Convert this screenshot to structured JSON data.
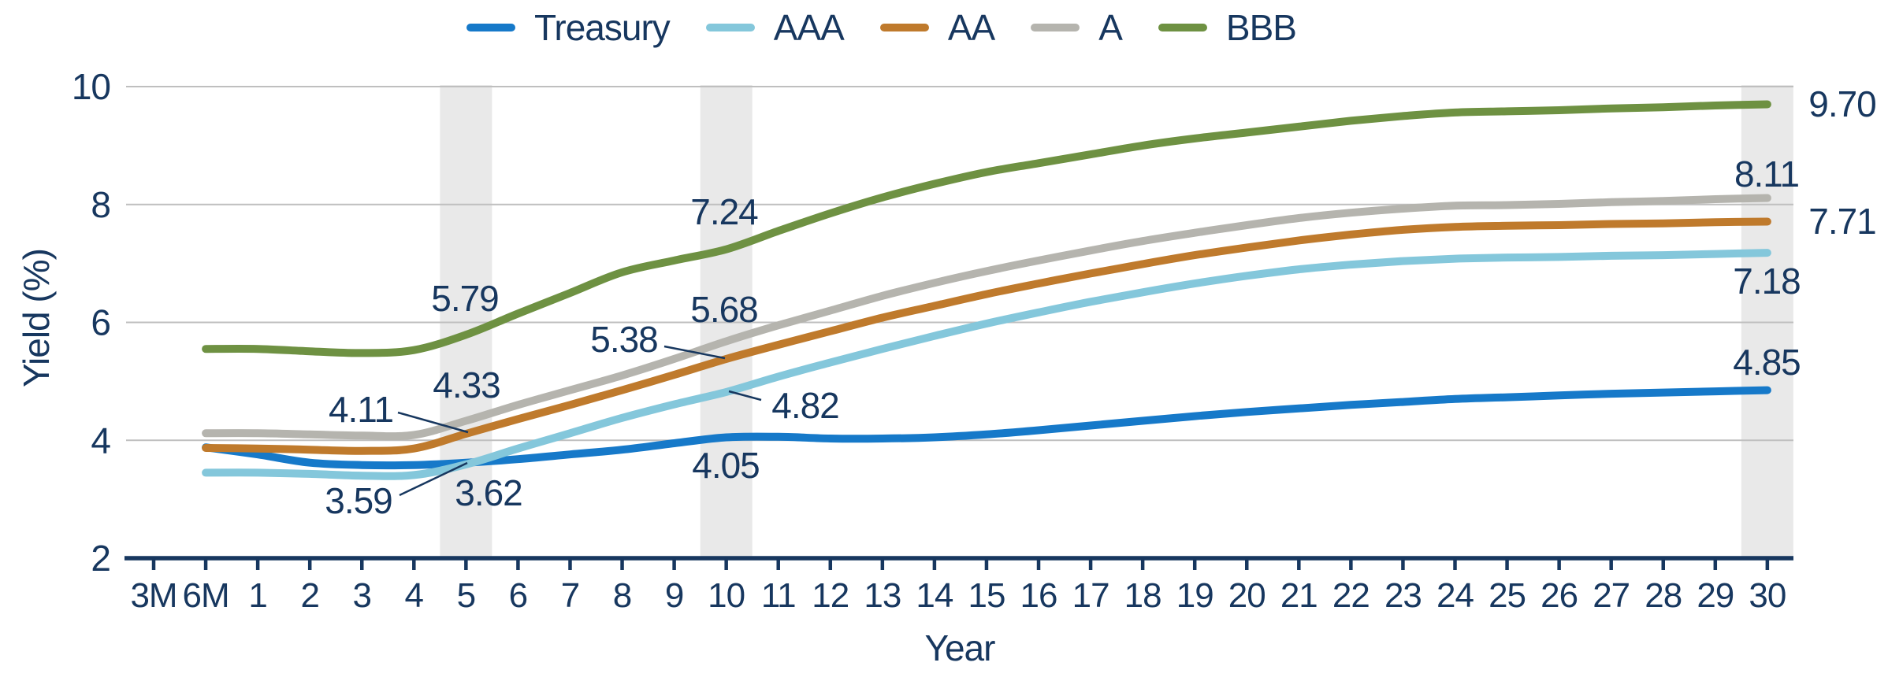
{
  "chart_data": {
    "type": "line",
    "xlabel": "Year",
    "ylabel": "Yield (%)",
    "x_categories": [
      "3M",
      "6M",
      "1",
      "2",
      "3",
      "4",
      "5",
      "6",
      "7",
      "8",
      "9",
      "10",
      "11",
      "12",
      "13",
      "14",
      "15",
      "16",
      "17",
      "18",
      "19",
      "20",
      "21",
      "22",
      "23",
      "24",
      "25",
      "26",
      "27",
      "28",
      "29",
      "30"
    ],
    "ylim": [
      2,
      10
    ],
    "yticks": [
      2,
      4,
      6,
      8,
      10
    ],
    "grid": true,
    "legend_position": "top",
    "highlight_bands": {
      "color": "#e9e9e9",
      "categories": [
        "5",
        "10",
        "30"
      ]
    },
    "series": [
      {
        "name": "Treasury",
        "color": "#1679c9",
        "values": [
          null,
          3.88,
          3.76,
          3.62,
          3.58,
          3.58,
          3.62,
          3.68,
          3.76,
          3.84,
          3.95,
          4.05,
          4.06,
          4.03,
          4.03,
          4.05,
          4.1,
          4.17,
          4.25,
          4.33,
          4.41,
          4.48,
          4.54,
          4.6,
          4.65,
          4.7,
          4.73,
          4.76,
          4.79,
          4.81,
          4.83,
          4.85
        ]
      },
      {
        "name": "AAA",
        "color": "#84c7db",
        "values": [
          null,
          3.45,
          3.45,
          3.43,
          3.4,
          3.41,
          3.59,
          3.86,
          4.12,
          4.38,
          4.61,
          4.82,
          5.08,
          5.32,
          5.55,
          5.77,
          5.98,
          6.17,
          6.35,
          6.51,
          6.66,
          6.79,
          6.9,
          6.98,
          7.04,
          7.08,
          7.1,
          7.11,
          7.13,
          7.14,
          7.16,
          7.18
        ]
      },
      {
        "name": "AA",
        "color": "#bf7a2c",
        "values": [
          null,
          3.87,
          3.86,
          3.84,
          3.82,
          3.86,
          4.11,
          4.36,
          4.6,
          4.85,
          5.11,
          5.38,
          5.62,
          5.85,
          6.08,
          6.28,
          6.48,
          6.66,
          6.83,
          6.99,
          7.14,
          7.27,
          7.39,
          7.49,
          7.57,
          7.62,
          7.64,
          7.65,
          7.67,
          7.68,
          7.7,
          7.71
        ]
      },
      {
        "name": "A",
        "color": "#b5b4ae",
        "values": [
          null,
          4.12,
          4.12,
          4.1,
          4.08,
          4.09,
          4.33,
          4.6,
          4.85,
          5.1,
          5.38,
          5.68,
          5.95,
          6.2,
          6.45,
          6.67,
          6.87,
          7.05,
          7.22,
          7.38,
          7.52,
          7.65,
          7.77,
          7.86,
          7.93,
          7.98,
          7.99,
          8.01,
          8.04,
          8.06,
          8.09,
          8.11
        ]
      },
      {
        "name": "BBB",
        "color": "#6e9142",
        "values": [
          null,
          5.55,
          5.55,
          5.51,
          5.48,
          5.53,
          5.79,
          6.15,
          6.5,
          6.85,
          7.05,
          7.24,
          7.55,
          7.85,
          8.12,
          8.35,
          8.55,
          8.7,
          8.85,
          9.0,
          9.12,
          9.22,
          9.32,
          9.42,
          9.5,
          9.56,
          9.58,
          9.6,
          9.63,
          9.65,
          9.68,
          9.7
        ]
      }
    ],
    "annotations": [
      {
        "series": "BBB",
        "x": "5",
        "label": "5.79"
      },
      {
        "series": "A",
        "x": "5",
        "label": "4.33"
      },
      {
        "series": "AA",
        "x": "5",
        "label": "4.11"
      },
      {
        "series": "AAA",
        "x": "5",
        "label": "3.59"
      },
      {
        "series": "Treasury",
        "x": "5",
        "label": "3.62"
      },
      {
        "series": "BBB",
        "x": "10",
        "label": "7.24"
      },
      {
        "series": "A",
        "x": "10",
        "label": "5.68"
      },
      {
        "series": "AA",
        "x": "10",
        "label": "5.38"
      },
      {
        "series": "AAA",
        "x": "10",
        "label": "4.82"
      },
      {
        "series": "Treasury",
        "x": "10",
        "label": "4.05"
      },
      {
        "series": "BBB",
        "x": "30",
        "label": "9.70"
      },
      {
        "series": "A",
        "x": "30",
        "label": "8.11"
      },
      {
        "series": "AA",
        "x": "30",
        "label": "7.71"
      },
      {
        "series": "AAA",
        "x": "30",
        "label": "7.18"
      },
      {
        "series": "Treasury",
        "x": "30",
        "label": "4.85"
      }
    ],
    "colors": {
      "text_navy": "#17375f",
      "gridline": "#bfbfbf",
      "axis_line": "#17375f",
      "highlight_band": "#e9e9e9",
      "background": "#ffffff"
    }
  }
}
